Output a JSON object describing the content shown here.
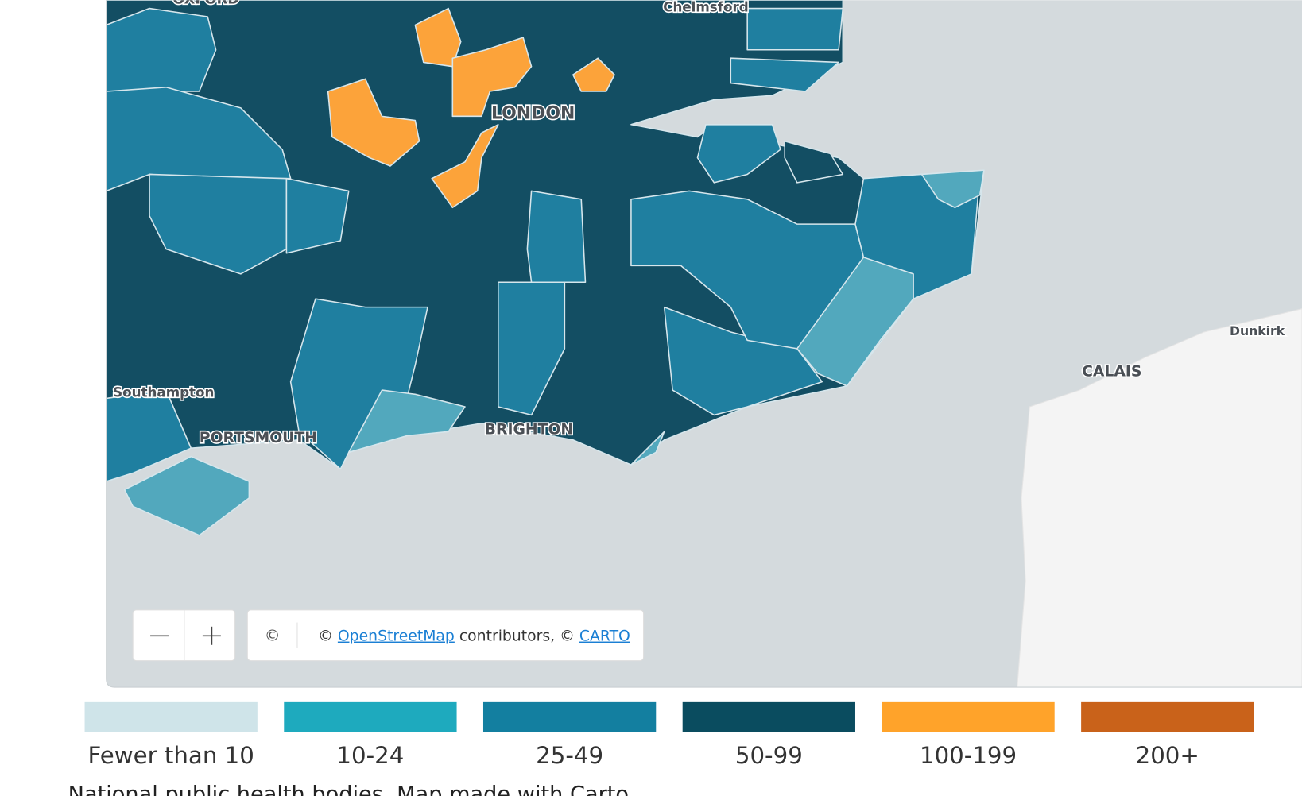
{
  "map": {
    "places": [
      "OXFORD",
      "Chelmsford",
      "LONDON",
      "Southampton",
      "PORTSMOUTH",
      "BRIGHTON",
      "CALAIS",
      "Dunkirk"
    ],
    "attribution": {
      "icon": "©",
      "prefix": "© ",
      "osm": "OpenStreetMap",
      "middle": " contributors, © ",
      "carto": "CARTO"
    }
  },
  "legend": {
    "items": [
      {
        "label": "Fewer than 10",
        "color": "#cfe4e9"
      },
      {
        "label": "10-24",
        "color": "#1eaabe"
      },
      {
        "label": "25-49",
        "color": "#137fa0"
      },
      {
        "label": "50-99",
        "color": "#0a4c5f"
      },
      {
        "label": "100-199",
        "color": "#ffa32a"
      },
      {
        "label": "200+",
        "color": "#c9621a"
      }
    ]
  },
  "source": "National public health bodies. Map made with Carto"
}
